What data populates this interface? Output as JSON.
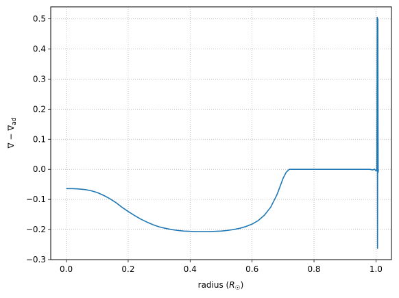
{
  "chart_data": {
    "type": "line",
    "title": "",
    "xlabel": "radius (R_☉)",
    "xlabel_parts": {
      "prefix": "radius (",
      "var": "R",
      "sub": "☉",
      "suffix": ")"
    },
    "ylabel": "∇ − ∇ad",
    "ylabel_parts": {
      "main": "∇ − ∇",
      "sub": "ad"
    },
    "xlim": [
      -0.05,
      1.05
    ],
    "ylim": [
      -0.3,
      0.54
    ],
    "xticks": [
      0.0,
      0.2,
      0.4,
      0.6,
      0.8,
      1.0
    ],
    "xtick_labels": [
      "0.0",
      "0.2",
      "0.4",
      "0.6",
      "0.8",
      "1.0"
    ],
    "yticks": [
      -0.3,
      -0.2,
      -0.1,
      0.0,
      0.1,
      0.2,
      0.3,
      0.4,
      0.5
    ],
    "ytick_labels": [
      "−0.3",
      "−0.2",
      "−0.1",
      "0.0",
      "0.1",
      "0.2",
      "0.3",
      "0.4",
      "0.5"
    ],
    "grid": true,
    "legend": "none",
    "series": [
      {
        "color": "#1f77b4",
        "x": [
          0.0,
          0.02,
          0.04,
          0.06,
          0.08,
          0.1,
          0.12,
          0.14,
          0.16,
          0.18,
          0.2,
          0.22,
          0.24,
          0.26,
          0.28,
          0.3,
          0.32,
          0.34,
          0.36,
          0.38,
          0.4,
          0.42,
          0.44,
          0.46,
          0.48,
          0.5,
          0.52,
          0.54,
          0.56,
          0.58,
          0.6,
          0.62,
          0.64,
          0.66,
          0.68,
          0.69,
          0.7,
          0.71,
          0.72,
          0.725,
          0.727,
          0.75,
          0.8,
          0.85,
          0.9,
          0.95,
          0.98,
          0.99,
          0.995,
          1.0,
          1.002,
          1.003,
          1.004,
          1.005,
          1.006,
          1.007,
          1.008
        ],
        "y": [
          -0.064,
          -0.064,
          -0.065,
          -0.067,
          -0.071,
          -0.077,
          -0.086,
          -0.097,
          -0.11,
          -0.126,
          -0.14,
          -0.153,
          -0.165,
          -0.175,
          -0.184,
          -0.191,
          -0.196,
          -0.2,
          -0.203,
          -0.205,
          -0.206,
          -0.207,
          -0.207,
          -0.207,
          -0.206,
          -0.205,
          -0.203,
          -0.2,
          -0.196,
          -0.19,
          -0.182,
          -0.17,
          -0.152,
          -0.126,
          -0.085,
          -0.058,
          -0.03,
          -0.01,
          0.0,
          0.0,
          0.0,
          0.0,
          0.0,
          0.0,
          0.0,
          0.0,
          0.0,
          -0.002,
          0.001,
          -0.005,
          -0.003,
          0.005,
          0.505,
          -0.262,
          0.5,
          -0.01,
          0.0
        ]
      }
    ]
  }
}
